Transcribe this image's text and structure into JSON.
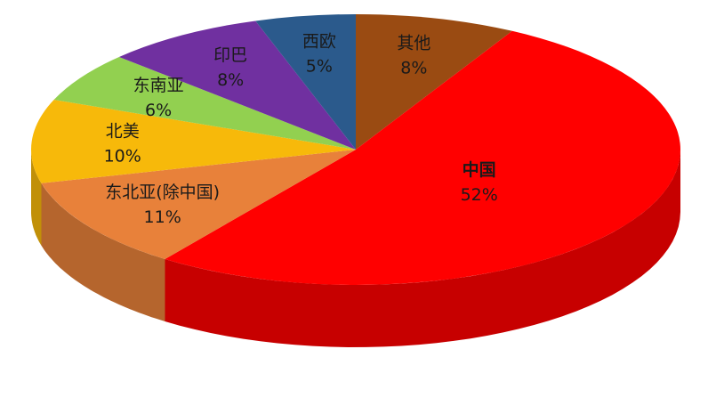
{
  "chart_data": {
    "type": "pie",
    "categories": [
      "其他",
      "中国",
      "东北亚(除中国)",
      "北美",
      "东南亚",
      "印巴",
      "西欧"
    ],
    "values": [
      8,
      52,
      11,
      10,
      6,
      8,
      5
    ],
    "value_labels": [
      "8%",
      "52%",
      "11%",
      "10%",
      "6%",
      "8%",
      "5%"
    ],
    "colors": [
      "#9a4b12",
      "#ff0000",
      "#e8813a",
      "#f7b90a",
      "#92d050",
      "#7030a0",
      "#2b5a8c"
    ]
  }
}
